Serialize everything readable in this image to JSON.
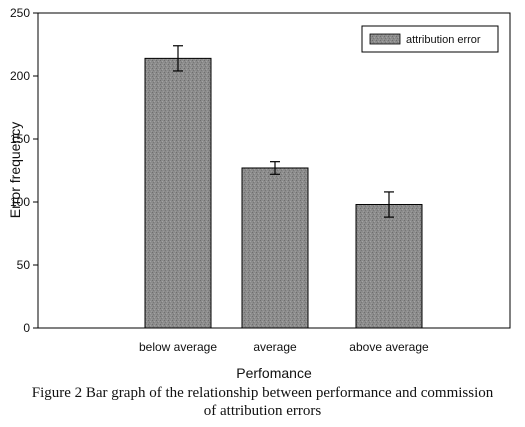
{
  "chart_data": {
    "type": "bar",
    "categories": [
      "below average",
      "average",
      "above average"
    ],
    "series": [
      {
        "name": "attribution error",
        "values": [
          214,
          127,
          98
        ],
        "error": [
          10,
          5,
          10
        ]
      }
    ],
    "xlabel": "Perfomance",
    "ylabel": "Error frequency",
    "ylim": [
      0,
      250
    ],
    "yticks": [
      "0",
      "50",
      "100",
      "150",
      "200",
      "250"
    ],
    "legend_position": "top-right",
    "grid": false,
    "bar_color": "#8a8a8a"
  },
  "caption": {
    "line1": "Figure 2   Bar graph of the relationship between performance and commission",
    "line2": "of attribution errors"
  }
}
